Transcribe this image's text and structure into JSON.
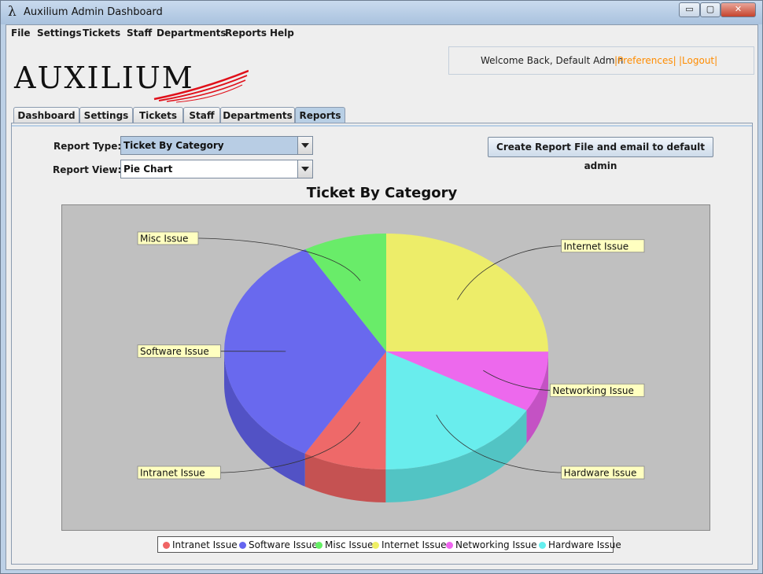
{
  "window": {
    "title": "Auxilium Admin Dashboard",
    "app_glyph": "λ",
    "controls": {
      "minimize": "▭",
      "maximize": "▢",
      "close": "✕"
    }
  },
  "menu": [
    "File",
    "Settings",
    "Tickets",
    "Staff",
    "Departments",
    "Reports",
    "Help"
  ],
  "logo": {
    "text": "AUXILIUM",
    "swoosh_color": "#e0101a"
  },
  "welcome": {
    "message": "Welcome Back, Default Admin",
    "preferences": "|Preferences|",
    "logout": "|Logout|",
    "link_color": "#ff8c00"
  },
  "tabs": [
    {
      "label": "Dashboard",
      "active": false
    },
    {
      "label": "Settings",
      "active": false
    },
    {
      "label": "Tickets",
      "active": false
    },
    {
      "label": "Staff",
      "active": false
    },
    {
      "label": "Departments",
      "active": false
    },
    {
      "label": "Reports",
      "active": true
    }
  ],
  "report_type": {
    "label": "Report Type:",
    "value": "Ticket By Category"
  },
  "report_view": {
    "label": "Report View:",
    "value": "Pie Chart"
  },
  "create_button": "Create Report File and email to default admin",
  "chart_data": {
    "type": "pie",
    "title": "Ticket By Category",
    "rendering": "3d",
    "legend_position": "bottom",
    "categories": [
      "Intranet Issue",
      "Software Issue",
      "Misc Issue",
      "Internet Issue",
      "Networking Issue",
      "Hardware Issue"
    ],
    "values": [
      8.3,
      33.3,
      8.3,
      25.0,
      8.3,
      16.7
    ],
    "colors": [
      "#f06464",
      "#6464f0",
      "#64ee64",
      "#efef64",
      "#ef64ef",
      "#64efef"
    ],
    "labels_visible": true
  }
}
